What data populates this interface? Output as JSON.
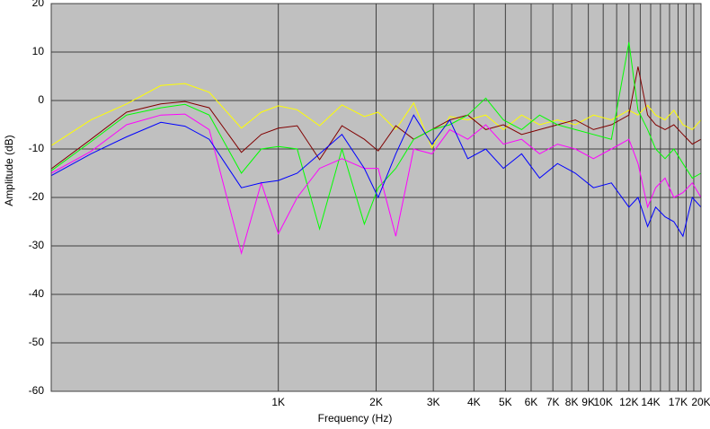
{
  "chart_data": {
    "type": "line",
    "xlabel": "Frequency (Hz)",
    "ylabel": "Amplitude (dB)",
    "log_x": true,
    "grid": true,
    "xlim": [
      200,
      20000
    ],
    "ylim": [
      -60,
      20
    ],
    "yticks": [
      20,
      10,
      0,
      -10,
      -20,
      -30,
      -40,
      -50,
      -60
    ],
    "xticks": [
      {
        "value": 1000,
        "label": "1K"
      },
      {
        "value": 2000,
        "label": "2K"
      },
      {
        "value": 3000,
        "label": "3K"
      },
      {
        "value": 4000,
        "label": "4K"
      },
      {
        "value": 5000,
        "label": "5K"
      },
      {
        "value": 6000,
        "label": "6K"
      },
      {
        "value": 7000,
        "label": "7K"
      },
      {
        "value": 8000,
        "label": "8K"
      },
      {
        "value": 9000,
        "label": "9K"
      },
      {
        "value": 10000,
        "label": "10K"
      },
      {
        "value": 12000,
        "label": "12K"
      },
      {
        "value": 14000,
        "label": "14K"
      },
      {
        "value": 17000,
        "label": "17K"
      },
      {
        "value": 20000,
        "label": "20K"
      }
    ],
    "x_minor_grid": [
      11000,
      13000,
      15000,
      16000,
      18000,
      19000
    ],
    "x": [
      200,
      265,
      341,
      435,
      516,
      613,
      770,
      886,
      1000,
      1143,
      1340,
      1570,
      1840,
      2030,
      2300,
      2610,
      2970,
      3370,
      3830,
      4350,
      4930,
      5610,
      6370,
      7230,
      8210,
      9330,
      10600,
      12000,
      12800,
      13700,
      14500,
      15500,
      16500,
      17600,
      18800,
      20000
    ],
    "series": [
      {
        "color": "#ffff00",
        "values": [
          -9.3,
          -4,
          -0.7,
          3.1,
          3.5,
          1.7,
          -5.7,
          -2.4,
          -1.1,
          -1.9,
          -5.2,
          -0.9,
          -3.3,
          -2.4,
          -6,
          -0.5,
          -9.8,
          -3.3,
          -4,
          -3,
          -6,
          -3,
          -5,
          -4,
          -5,
          -3,
          -4,
          -2,
          -3,
          -1,
          -3,
          -4,
          -2,
          -5,
          -6,
          -4
        ]
      },
      {
        "color": "#800000",
        "values": [
          -14.1,
          -8,
          -2.4,
          -0.7,
          -0.2,
          -1.5,
          -10.7,
          -7,
          -5.7,
          -5.2,
          -12.2,
          -5.2,
          -8,
          -10.4,
          -5.2,
          -8,
          -6,
          -4,
          -3,
          -6,
          -5,
          -7,
          -6,
          -5,
          -4,
          -6,
          -5,
          -3,
          7,
          -3,
          -5,
          -6,
          -5,
          -7,
          -9,
          -8
        ]
      },
      {
        "color": "#00ff00",
        "values": [
          -14.5,
          -8.5,
          -3,
          -1.5,
          -0.8,
          -3,
          -15,
          -10,
          -9.5,
          -10,
          -26.5,
          -10,
          -25.5,
          -18,
          -14,
          -8,
          -6,
          -5,
          -3,
          0.5,
          -4,
          -6,
          -3,
          -5,
          -6,
          -7,
          -8,
          12,
          -2,
          -6,
          -10,
          -12,
          -10,
          -13,
          -16,
          -15
        ]
      },
      {
        "color": "#ff00ff",
        "values": [
          -15,
          -10.5,
          -5,
          -3,
          -2.8,
          -6,
          -31.5,
          -17,
          -27.5,
          -20,
          -14,
          -12,
          -14,
          -14,
          -28,
          -10,
          -11,
          -6,
          -8,
          -5,
          -9,
          -8,
          -11,
          -9,
          -10,
          -12,
          -10,
          -8,
          -13,
          -22,
          -18,
          -16,
          -20,
          -19,
          -17,
          -20
        ]
      },
      {
        "color": "#0000ff",
        "values": [
          -15.5,
          -11,
          -7.5,
          -4.5,
          -5.3,
          -8,
          -18,
          -17,
          -16.5,
          -15,
          -11,
          -7,
          -14,
          -20,
          -11,
          -3,
          -9,
          -4,
          -12,
          -10,
          -14,
          -11,
          -16,
          -13,
          -15,
          -18,
          -17,
          -22,
          -20,
          -26,
          -22,
          -24,
          -25,
          -28,
          -20,
          -22
        ]
      }
    ]
  }
}
